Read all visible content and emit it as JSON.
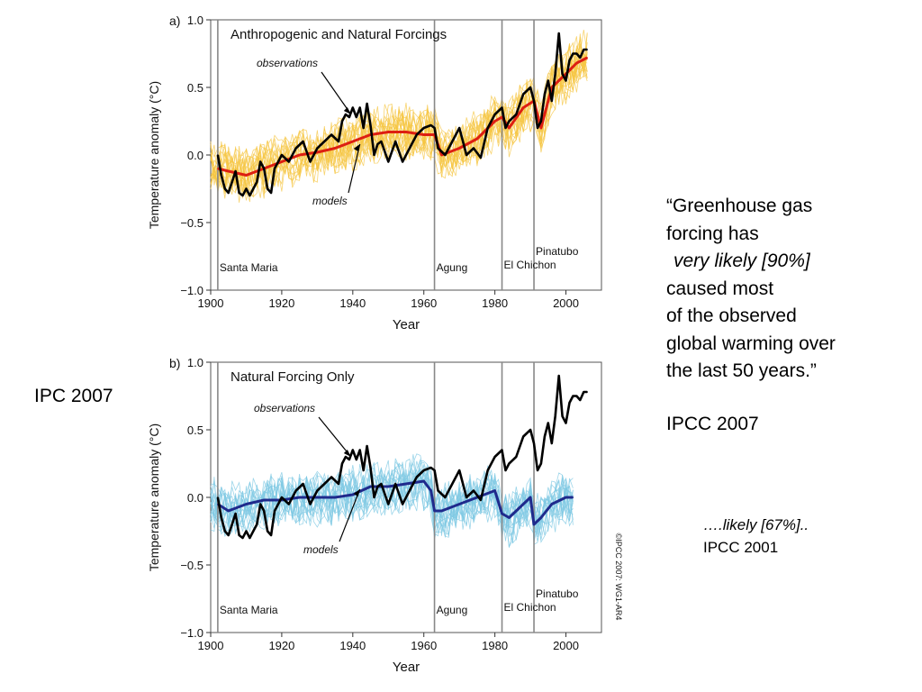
{
  "left_label": "IPC 2007",
  "quote": {
    "open_mark": "“",
    "line1": "Greenhouse gas",
    "line2": "forcing has",
    "emphasis": "very likely [90%]",
    "line4": "caused most",
    "line5": "of the observed",
    "line6": "global warming over",
    "line7": "the last 50 years.",
    "close_mark": "”",
    "source": "IPCC 2007"
  },
  "note": {
    "emphasis": "….likely [67%]..",
    "source": "IPCC 2001"
  },
  "copyright": "©IPCC  2007: WG1-AR4",
  "chart_data": [
    {
      "type": "line",
      "panel_letter": "a)",
      "title": "Anthropogenic and Natural Forcings",
      "xlabel": "Year",
      "ylabel": "Temperature anomaly (°C)",
      "xlim": [
        1900,
        2010
      ],
      "ylim": [
        -1.0,
        1.0
      ],
      "xticks": [
        1900,
        1920,
        1940,
        1960,
        1980,
        2000
      ],
      "yticks": [
        -1.0,
        -0.5,
        0.0,
        0.5,
        1.0
      ],
      "ytick_labels": [
        "−1.0",
        "−0.5",
        "0.0",
        "0.5",
        "1.0"
      ],
      "annotations": [
        "observations",
        "models"
      ],
      "eruptions": [
        {
          "name": "Santa Maria",
          "year": 1902
        },
        {
          "name": "Agung",
          "year": 1963
        },
        {
          "name": "El Chichon",
          "year": 1982
        },
        {
          "name": "Pinatubo",
          "year": 1991
        }
      ],
      "ensemble_color": "#f5c542",
      "series": [
        {
          "name": "observations",
          "color": "#000000",
          "x": [
            1902,
            1903,
            1904,
            1905,
            1906,
            1907,
            1908,
            1909,
            1910,
            1911,
            1912,
            1913,
            1914,
            1915,
            1916,
            1917,
            1918,
            1919,
            1920,
            1922,
            1924,
            1926,
            1928,
            1930,
            1932,
            1934,
            1936,
            1937,
            1938,
            1939,
            1940,
            1941,
            1942,
            1943,
            1944,
            1945,
            1946,
            1947,
            1948,
            1950,
            1952,
            1954,
            1956,
            1958,
            1960,
            1962,
            1963,
            1964,
            1966,
            1968,
            1970,
            1972,
            1974,
            1976,
            1978,
            1980,
            1982,
            1983,
            1984,
            1986,
            1988,
            1990,
            1991,
            1992,
            1993,
            1994,
            1995,
            1996,
            1997,
            1998,
            1999,
            2000,
            2001,
            2002,
            2003,
            2004,
            2005,
            2006
          ],
          "y": [
            0.0,
            -0.15,
            -0.25,
            -0.28,
            -0.2,
            -0.12,
            -0.28,
            -0.3,
            -0.25,
            -0.3,
            -0.25,
            -0.2,
            -0.05,
            -0.1,
            -0.25,
            -0.28,
            -0.1,
            -0.05,
            0.0,
            -0.05,
            0.05,
            0.1,
            -0.05,
            0.05,
            0.1,
            0.15,
            0.1,
            0.25,
            0.3,
            0.28,
            0.35,
            0.28,
            0.35,
            0.2,
            0.38,
            0.22,
            0.0,
            0.08,
            0.1,
            -0.05,
            0.1,
            -0.05,
            0.05,
            0.15,
            0.2,
            0.22,
            0.2,
            0.05,
            0.0,
            0.1,
            0.2,
            0.0,
            0.05,
            -0.02,
            0.2,
            0.3,
            0.35,
            0.2,
            0.25,
            0.3,
            0.45,
            0.5,
            0.4,
            0.2,
            0.25,
            0.45,
            0.55,
            0.4,
            0.6,
            0.9,
            0.6,
            0.55,
            0.7,
            0.75,
            0.75,
            0.72,
            0.78,
            0.78
          ]
        },
        {
          "name": "models",
          "color": "#dd1f12",
          "x": [
            1902,
            1905,
            1910,
            1915,
            1920,
            1925,
            1930,
            1935,
            1940,
            1945,
            1950,
            1955,
            1960,
            1963,
            1965,
            1970,
            1975,
            1980,
            1982,
            1984,
            1988,
            1991,
            1993,
            1996,
            2000,
            2003,
            2006
          ],
          "y": [
            -0.1,
            -0.12,
            -0.15,
            -0.1,
            -0.05,
            0.0,
            0.02,
            0.05,
            0.1,
            0.15,
            0.17,
            0.17,
            0.15,
            0.15,
            0.0,
            0.05,
            0.12,
            0.25,
            0.28,
            0.2,
            0.35,
            0.4,
            0.2,
            0.5,
            0.6,
            0.68,
            0.72
          ]
        }
      ]
    },
    {
      "type": "line",
      "panel_letter": "b)",
      "title": "Natural Forcing Only",
      "xlabel": "Year",
      "ylabel": "Temperature anomaly (°C)",
      "xlim": [
        1900,
        2010
      ],
      "ylim": [
        -1.0,
        1.0
      ],
      "xticks": [
        1900,
        1920,
        1940,
        1960,
        1980,
        2000
      ],
      "yticks": [
        -1.0,
        -0.5,
        0.0,
        0.5,
        1.0
      ],
      "ytick_labels": [
        "−1.0",
        "−0.5",
        "0.0",
        "0.5",
        "1.0"
      ],
      "annotations": [
        "observations",
        "models"
      ],
      "eruptions": [
        {
          "name": "Santa Maria",
          "year": 1902
        },
        {
          "name": "Agung",
          "year": 1963
        },
        {
          "name": "El Chichon",
          "year": 1982
        },
        {
          "name": "Pinatubo",
          "year": 1991
        }
      ],
      "ensemble_color": "#7ec8e3",
      "series": [
        {
          "name": "observations",
          "color": "#000000",
          "x": [
            1902,
            1903,
            1904,
            1905,
            1906,
            1907,
            1908,
            1909,
            1910,
            1911,
            1912,
            1913,
            1914,
            1915,
            1916,
            1917,
            1918,
            1919,
            1920,
            1922,
            1924,
            1926,
            1928,
            1930,
            1932,
            1934,
            1936,
            1937,
            1938,
            1939,
            1940,
            1941,
            1942,
            1943,
            1944,
            1945,
            1946,
            1947,
            1948,
            1950,
            1952,
            1954,
            1956,
            1958,
            1960,
            1962,
            1963,
            1964,
            1966,
            1968,
            1970,
            1972,
            1974,
            1976,
            1978,
            1980,
            1982,
            1983,
            1984,
            1986,
            1988,
            1990,
            1991,
            1992,
            1993,
            1994,
            1995,
            1996,
            1997,
            1998,
            1999,
            2000,
            2001,
            2002,
            2003,
            2004,
            2005,
            2006
          ],
          "y": [
            0.0,
            -0.15,
            -0.25,
            -0.28,
            -0.2,
            -0.12,
            -0.28,
            -0.3,
            -0.25,
            -0.3,
            -0.25,
            -0.2,
            -0.05,
            -0.1,
            -0.25,
            -0.28,
            -0.1,
            -0.05,
            0.0,
            -0.05,
            0.05,
            0.1,
            -0.05,
            0.05,
            0.1,
            0.15,
            0.1,
            0.25,
            0.3,
            0.28,
            0.35,
            0.28,
            0.35,
            0.2,
            0.38,
            0.22,
            0.0,
            0.08,
            0.1,
            -0.05,
            0.1,
            -0.05,
            0.05,
            0.15,
            0.2,
            0.22,
            0.2,
            0.05,
            0.0,
            0.1,
            0.2,
            0.0,
            0.05,
            -0.02,
            0.2,
            0.3,
            0.35,
            0.2,
            0.25,
            0.3,
            0.45,
            0.5,
            0.4,
            0.2,
            0.25,
            0.45,
            0.55,
            0.4,
            0.6,
            0.9,
            0.6,
            0.55,
            0.7,
            0.75,
            0.75,
            0.72,
            0.78,
            0.78
          ]
        },
        {
          "name": "models",
          "color": "#1f2a8c",
          "x": [
            1902,
            1905,
            1910,
            1915,
            1920,
            1925,
            1930,
            1935,
            1940,
            1945,
            1950,
            1955,
            1960,
            1962,
            1963,
            1965,
            1970,
            1975,
            1980,
            1982,
            1984,
            1988,
            1990,
            1991,
            1993,
            1996,
            2000,
            2002
          ],
          "y": [
            -0.05,
            -0.1,
            -0.05,
            -0.02,
            -0.02,
            0.0,
            0.0,
            0.0,
            0.02,
            0.08,
            0.08,
            0.1,
            0.12,
            0.05,
            -0.1,
            -0.1,
            -0.05,
            0.0,
            0.05,
            -0.12,
            -0.15,
            -0.05,
            0.0,
            -0.2,
            -0.15,
            -0.05,
            0.0,
            0.0
          ]
        }
      ]
    }
  ]
}
